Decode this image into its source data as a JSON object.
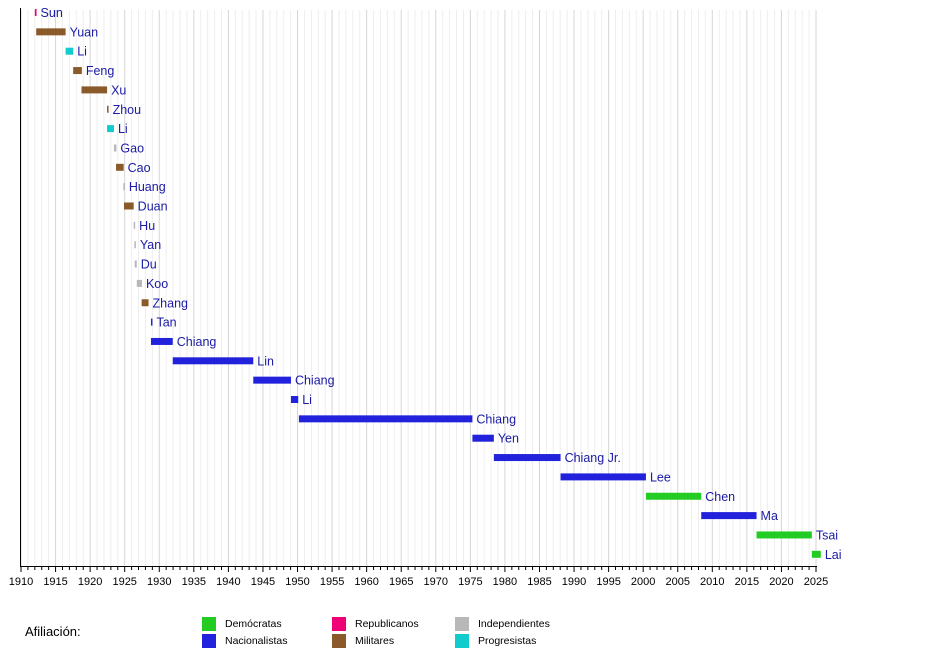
{
  "chart_data": {
    "type": "bar",
    "subtype": "timeline",
    "title": "",
    "xlabel": "",
    "ylabel": "",
    "xlim": [
      1910,
      2025
    ],
    "x_ticks": [
      1910,
      1915,
      1920,
      1925,
      1930,
      1935,
      1940,
      1945,
      1950,
      1955,
      1960,
      1965,
      1970,
      1975,
      1980,
      1985,
      1990,
      1995,
      2000,
      2005,
      2010,
      2015,
      2020,
      2025
    ],
    "grid": "vertical, every year (stronger every 5 years)",
    "legend_placement": "bottom",
    "legend_title": "Afiliación:",
    "parties": {
      "dem": {
        "name": "Demócratas",
        "color": "#22cc22"
      },
      "nac": {
        "name": "Nacionalistas",
        "color": "#2222dd"
      },
      "rep": {
        "name": "Republicanos",
        "color": "#ee0077"
      },
      "mil": {
        "name": "Militares",
        "color": "#8b5a2b"
      },
      "ind": {
        "name": "Independientes",
        "color": "#b8b8b8"
      },
      "pro": {
        "name": "Progresistas",
        "color": "#11cccc"
      }
    },
    "legend_order": [
      "dem",
      "rep",
      "ind",
      "nac",
      "mil",
      "pro"
    ],
    "series": [
      {
        "name": "Sun",
        "start": 1912.0,
        "end": 1912.25,
        "party": "rep"
      },
      {
        "name": "Yuan",
        "start": 1912.2,
        "end": 1916.45,
        "party": "mil"
      },
      {
        "name": "Li",
        "start": 1916.45,
        "end": 1917.55,
        "party": "pro"
      },
      {
        "name": "Feng",
        "start": 1917.55,
        "end": 1918.8,
        "party": "mil"
      },
      {
        "name": "Xu",
        "start": 1918.75,
        "end": 1922.45,
        "party": "mil"
      },
      {
        "name": "Zhou",
        "start": 1922.45,
        "end": 1922.6,
        "party": "mil"
      },
      {
        "name": "Li",
        "start": 1922.45,
        "end": 1923.45,
        "party": "pro"
      },
      {
        "name": "Gao",
        "start": 1923.45,
        "end": 1923.8,
        "party": "ind"
      },
      {
        "name": "Cao",
        "start": 1923.75,
        "end": 1924.85,
        "party": "mil"
      },
      {
        "name": "Huang",
        "start": 1924.8,
        "end": 1924.9,
        "party": "ind"
      },
      {
        "name": "Duan",
        "start": 1924.9,
        "end": 1926.3,
        "party": "mil"
      },
      {
        "name": "Hu",
        "start": 1926.3,
        "end": 1926.4,
        "party": "ind"
      },
      {
        "name": "Yan",
        "start": 1926.4,
        "end": 1926.45,
        "party": "ind"
      },
      {
        "name": "Du",
        "start": 1926.45,
        "end": 1926.75,
        "party": "ind"
      },
      {
        "name": "Koo",
        "start": 1926.75,
        "end": 1927.5,
        "party": "ind"
      },
      {
        "name": "Zhang",
        "start": 1927.45,
        "end": 1928.45,
        "party": "mil"
      },
      {
        "name": "Tan",
        "start": 1928.8,
        "end": 1928.95,
        "party": "nac"
      },
      {
        "name": "Chiang",
        "start": 1928.8,
        "end": 1931.95,
        "party": "nac"
      },
      {
        "name": "Lin",
        "start": 1931.95,
        "end": 1943.6,
        "party": "nac"
      },
      {
        "name": "Chiang",
        "start": 1943.6,
        "end": 1949.05,
        "party": "nac"
      },
      {
        "name": "Li",
        "start": 1949.05,
        "end": 1950.1,
        "party": "nac"
      },
      {
        "name": "Chiang",
        "start": 1950.2,
        "end": 1975.3,
        "party": "nac"
      },
      {
        "name": "Yen",
        "start": 1975.3,
        "end": 1978.4,
        "party": "nac"
      },
      {
        "name": "Chiang Jr.",
        "start": 1978.4,
        "end": 1988.05,
        "party": "nac"
      },
      {
        "name": "Lee",
        "start": 1988.05,
        "end": 2000.4,
        "party": "nac"
      },
      {
        "name": "Chen",
        "start": 2000.4,
        "end": 2008.4,
        "party": "dem"
      },
      {
        "name": "Ma",
        "start": 2008.4,
        "end": 2016.4,
        "party": "nac"
      },
      {
        "name": "Tsai",
        "start": 2016.4,
        "end": 2024.4,
        "party": "dem"
      },
      {
        "name": "Lai",
        "start": 2024.4,
        "end": 2025.7,
        "party": "dem"
      }
    ]
  }
}
